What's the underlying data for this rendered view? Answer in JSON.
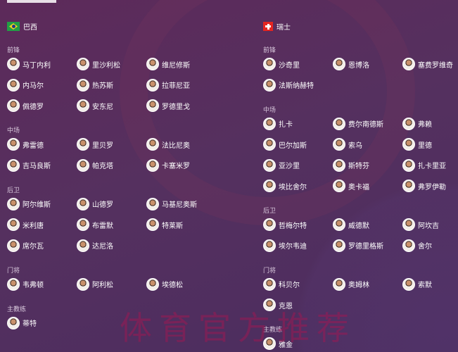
{
  "teams": [
    {
      "name": "巴西",
      "flag": "brazil-flag",
      "sections": [
        {
          "label": "前锋",
          "players": [
            "马丁内利",
            "里沙利松",
            "维尼修斯",
            "内马尔",
            "热苏斯",
            "拉菲尼亚",
            "佩德罗",
            "安东尼",
            "罗德里戈"
          ]
        },
        {
          "label": "中场",
          "players": [
            "弗雷德",
            "里贝罗",
            "法比尼奥",
            "吉马良斯",
            "帕克塔",
            "卡塞米罗"
          ]
        },
        {
          "label": "后卫",
          "players": [
            "阿尔维斯",
            "山德罗",
            "马基尼奥斯",
            "米利唐",
            "布雷默",
            "特莱斯",
            "席尔瓦",
            "达尼洛"
          ]
        },
        {
          "label": "门将",
          "players": [
            "韦弗顿",
            "阿利松",
            "埃德松"
          ]
        },
        {
          "label": "主教练",
          "players": [
            "蒂特"
          ]
        }
      ]
    },
    {
      "name": "瑞士",
      "flag": "switzerland-flag",
      "sections": [
        {
          "label": "前锋",
          "players": [
            "沙奇里",
            "恩博洛",
            "塞费罗维奇",
            "法斯纳赫特"
          ]
        },
        {
          "label": "中场",
          "players": [
            "扎卡",
            "费尔南德斯",
            "弗赖",
            "巴尔加斯",
            "索乌",
            "里德",
            "亚沙里",
            "斯特芬",
            "扎卡里亚",
            "埃比舍尔",
            "奥卡福",
            "弗罗伊勒"
          ]
        },
        {
          "label": "后卫",
          "players": [
            "哲梅尔特",
            "威德默",
            "阿坎吉",
            "埃尔韦迪",
            "罗德里格斯",
            "舍尔"
          ]
        },
        {
          "label": "门将",
          "players": [
            "科贝尔",
            "奥姆林",
            "索默",
            "克恩"
          ]
        },
        {
          "label": "主教练",
          "players": [
            "雅金"
          ]
        }
      ]
    }
  ],
  "watermark": "体育官方推荐"
}
